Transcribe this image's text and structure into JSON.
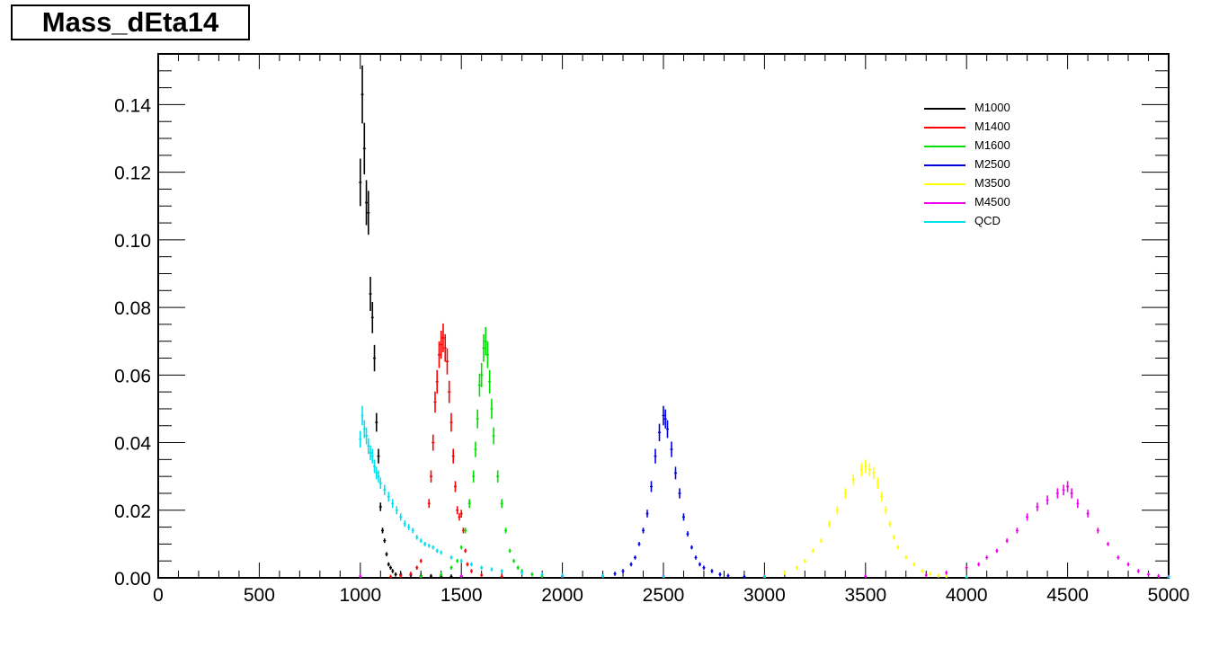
{
  "title": "Mass_dEta14",
  "chart_data": {
    "type": "histogram",
    "title": "Mass_dEta14",
    "xlabel": "",
    "ylabel": "",
    "xlim": [
      0,
      5000
    ],
    "ylim": [
      0,
      0.155
    ],
    "x_ticks": [
      "0",
      "500",
      "1000",
      "1500",
      "2000",
      "2500",
      "3000",
      "3500",
      "4000",
      "4500",
      "5000"
    ],
    "y_ticks": [
      "0.00",
      "0.02",
      "0.04",
      "0.06",
      "0.08",
      "0.10",
      "0.12",
      "0.14"
    ],
    "grid": false,
    "legend_position": "top-right",
    "series": [
      {
        "name": "M1000",
        "color": "#000000",
        "points": [
          [
            1000,
            0.117
          ],
          [
            1010,
            0.143
          ],
          [
            1020,
            0.127
          ],
          [
            1030,
            0.111
          ],
          [
            1040,
            0.108
          ],
          [
            1050,
            0.084
          ],
          [
            1060,
            0.077
          ],
          [
            1070,
            0.065
          ],
          [
            1080,
            0.046
          ],
          [
            1090,
            0.036
          ],
          [
            1100,
            0.021
          ],
          [
            1110,
            0.014
          ],
          [
            1120,
            0.011
          ],
          [
            1130,
            0.007
          ],
          [
            1140,
            0.004
          ],
          [
            1150,
            0.003
          ],
          [
            1160,
            0.002
          ],
          [
            1175,
            0.001
          ],
          [
            1200,
            0.001
          ],
          [
            1250,
            0.0008
          ],
          [
            1300,
            0.0006
          ],
          [
            1350,
            0.0005
          ],
          [
            1400,
            0.0005
          ],
          [
            1450,
            0.0004
          ],
          [
            1500,
            0.0003
          ]
        ]
      },
      {
        "name": "M1400",
        "color": "#ff0000",
        "points": [
          [
            1150,
            0.0003
          ],
          [
            1200,
            0.0006
          ],
          [
            1250,
            0.0012
          ],
          [
            1280,
            0.003
          ],
          [
            1300,
            0.005
          ],
          [
            1320,
            0.01
          ],
          [
            1340,
            0.022
          ],
          [
            1350,
            0.03
          ],
          [
            1360,
            0.04
          ],
          [
            1370,
            0.052
          ],
          [
            1380,
            0.058
          ],
          [
            1390,
            0.066
          ],
          [
            1400,
            0.069
          ],
          [
            1410,
            0.071
          ],
          [
            1420,
            0.068
          ],
          [
            1430,
            0.064
          ],
          [
            1440,
            0.055
          ],
          [
            1450,
            0.046
          ],
          [
            1460,
            0.036
          ],
          [
            1470,
            0.027
          ],
          [
            1480,
            0.02
          ],
          [
            1490,
            0.018
          ],
          [
            1500,
            0.019
          ],
          [
            1510,
            0.014
          ],
          [
            1520,
            0.008
          ],
          [
            1530,
            0.004
          ],
          [
            1550,
            0.002
          ],
          [
            1600,
            0.0008
          ],
          [
            1700,
            0.0004
          ]
        ]
      },
      {
        "name": "M1600",
        "color": "#00e000",
        "points": [
          [
            1300,
            0.0003
          ],
          [
            1400,
            0.001
          ],
          [
            1450,
            0.003
          ],
          [
            1480,
            0.005
          ],
          [
            1500,
            0.009
          ],
          [
            1520,
            0.014
          ],
          [
            1540,
            0.022
          ],
          [
            1560,
            0.03
          ],
          [
            1570,
            0.038
          ],
          [
            1580,
            0.047
          ],
          [
            1590,
            0.057
          ],
          [
            1600,
            0.06
          ],
          [
            1610,
            0.068
          ],
          [
            1620,
            0.07
          ],
          [
            1630,
            0.066
          ],
          [
            1640,
            0.058
          ],
          [
            1650,
            0.05
          ],
          [
            1660,
            0.042
          ],
          [
            1680,
            0.03
          ],
          [
            1700,
            0.022
          ],
          [
            1720,
            0.014
          ],
          [
            1740,
            0.008
          ],
          [
            1760,
            0.005
          ],
          [
            1780,
            0.003
          ],
          [
            1800,
            0.002
          ],
          [
            1850,
            0.001
          ],
          [
            1900,
            0.0005
          ],
          [
            2000,
            0.0003
          ]
        ]
      },
      {
        "name": "M2500",
        "color": "#0000dd",
        "points": [
          [
            2200,
            0.0005
          ],
          [
            2260,
            0.0012
          ],
          [
            2300,
            0.002
          ],
          [
            2340,
            0.004
          ],
          [
            2360,
            0.006
          ],
          [
            2380,
            0.01
          ],
          [
            2400,
            0.014
          ],
          [
            2420,
            0.019
          ],
          [
            2440,
            0.027
          ],
          [
            2460,
            0.036
          ],
          [
            2480,
            0.043
          ],
          [
            2500,
            0.048
          ],
          [
            2510,
            0.047
          ],
          [
            2520,
            0.044
          ],
          [
            2540,
            0.038
          ],
          [
            2560,
            0.031
          ],
          [
            2580,
            0.025
          ],
          [
            2600,
            0.018
          ],
          [
            2620,
            0.013
          ],
          [
            2640,
            0.009
          ],
          [
            2660,
            0.006
          ],
          [
            2680,
            0.004
          ],
          [
            2700,
            0.003
          ],
          [
            2740,
            0.002
          ],
          [
            2780,
            0.001
          ],
          [
            2820,
            0.0006
          ],
          [
            2900,
            0.0003
          ]
        ]
      },
      {
        "name": "M3500",
        "color": "#ffff00",
        "points": [
          [
            3000,
            0.0004
          ],
          [
            3100,
            0.0015
          ],
          [
            3160,
            0.003
          ],
          [
            3200,
            0.005
          ],
          [
            3240,
            0.008
          ],
          [
            3280,
            0.011
          ],
          [
            3320,
            0.016
          ],
          [
            3360,
            0.02
          ],
          [
            3400,
            0.025
          ],
          [
            3440,
            0.029
          ],
          [
            3480,
            0.032
          ],
          [
            3500,
            0.033
          ],
          [
            3520,
            0.032
          ],
          [
            3540,
            0.031
          ],
          [
            3560,
            0.028
          ],
          [
            3580,
            0.024
          ],
          [
            3600,
            0.02
          ],
          [
            3620,
            0.016
          ],
          [
            3640,
            0.012
          ],
          [
            3660,
            0.009
          ],
          [
            3700,
            0.006
          ],
          [
            3740,
            0.004
          ],
          [
            3780,
            0.002
          ],
          [
            3820,
            0.0012
          ],
          [
            3860,
            0.0007
          ],
          [
            3900,
            0.0004
          ]
        ]
      },
      {
        "name": "M4500",
        "color": "#ee00ee",
        "points": [
          [
            1000,
            0.0005
          ],
          [
            1500,
            0.0006
          ],
          [
            2000,
            0.0005
          ],
          [
            2500,
            0.0005
          ],
          [
            3000,
            0.0004
          ],
          [
            3500,
            0.0005
          ],
          [
            3800,
            0.0008
          ],
          [
            3900,
            0.0015
          ],
          [
            4000,
            0.003
          ],
          [
            4060,
            0.004
          ],
          [
            4100,
            0.006
          ],
          [
            4150,
            0.008
          ],
          [
            4200,
            0.011
          ],
          [
            4250,
            0.014
          ],
          [
            4300,
            0.018
          ],
          [
            4350,
            0.021
          ],
          [
            4400,
            0.023
          ],
          [
            4450,
            0.025
          ],
          [
            4480,
            0.026
          ],
          [
            4500,
            0.027
          ],
          [
            4520,
            0.025
          ],
          [
            4550,
            0.022
          ],
          [
            4600,
            0.019
          ],
          [
            4650,
            0.014
          ],
          [
            4700,
            0.01
          ],
          [
            4750,
            0.006
          ],
          [
            4800,
            0.004
          ],
          [
            4850,
            0.002
          ],
          [
            4900,
            0.001
          ],
          [
            4950,
            0.0005
          ],
          [
            5000,
            0.0003
          ]
        ]
      },
      {
        "name": "QCD",
        "color": "#00e0ee",
        "points": [
          [
            1000,
            0.041
          ],
          [
            1010,
            0.048
          ],
          [
            1020,
            0.044
          ],
          [
            1030,
            0.042
          ],
          [
            1040,
            0.039
          ],
          [
            1050,
            0.037
          ],
          [
            1060,
            0.036
          ],
          [
            1070,
            0.033
          ],
          [
            1080,
            0.031
          ],
          [
            1090,
            0.03
          ],
          [
            1100,
            0.028
          ],
          [
            1120,
            0.026
          ],
          [
            1140,
            0.024
          ],
          [
            1160,
            0.022
          ],
          [
            1180,
            0.02
          ],
          [
            1200,
            0.018
          ],
          [
            1220,
            0.016
          ],
          [
            1240,
            0.015
          ],
          [
            1260,
            0.014
          ],
          [
            1280,
            0.012
          ],
          [
            1300,
            0.011
          ],
          [
            1320,
            0.01
          ],
          [
            1340,
            0.0095
          ],
          [
            1360,
            0.009
          ],
          [
            1380,
            0.008
          ],
          [
            1400,
            0.0075
          ],
          [
            1450,
            0.006
          ],
          [
            1500,
            0.005
          ],
          [
            1550,
            0.004
          ],
          [
            1600,
            0.003
          ],
          [
            1650,
            0.0025
          ],
          [
            1700,
            0.002
          ],
          [
            1800,
            0.0015
          ],
          [
            1900,
            0.001
          ],
          [
            2000,
            0.0007
          ],
          [
            2200,
            0.0005
          ],
          [
            2500,
            0.0003
          ],
          [
            3000,
            0.0002
          ],
          [
            4000,
            0.0001
          ],
          [
            5000,
            0.0001
          ]
        ]
      }
    ]
  }
}
